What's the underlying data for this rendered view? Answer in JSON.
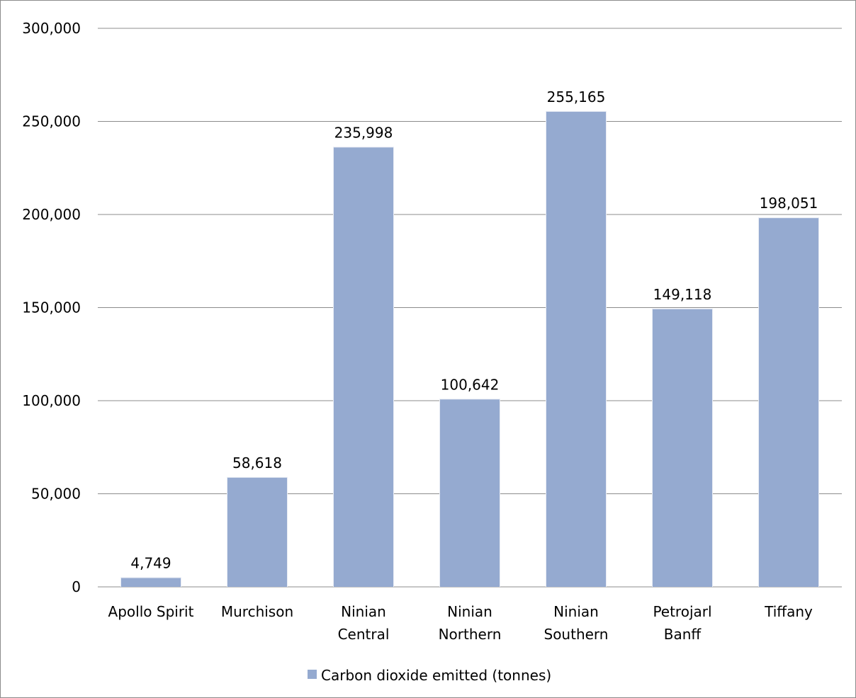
{
  "chart_data": {
    "type": "bar",
    "categories": [
      "Apollo Spirit",
      "Murchison",
      "Ninian Central",
      "Ninian Northern",
      "Ninian Southern",
      "Petrojarl Banff",
      "Tiffany"
    ],
    "category_lines": [
      [
        "Apollo Spirit"
      ],
      [
        "Murchison"
      ],
      [
        "Ninian",
        "Central"
      ],
      [
        "Ninian",
        "Northern"
      ],
      [
        "Ninian",
        "Southern"
      ],
      [
        "Petrojarl",
        "Banff"
      ],
      [
        "Tiffany"
      ]
    ],
    "series": [
      {
        "name": "Carbon dioxide emitted (tonnes)",
        "values": [
          4749,
          58618,
          235998,
          100642,
          255165,
          149118,
          198051
        ],
        "color": "#95aad0"
      }
    ],
    "data_labels": [
      "4,749",
      "58,618",
      "235,998",
      "100,642",
      "255,165",
      "149,118",
      "198,051"
    ],
    "title": "",
    "xlabel": "",
    "ylabel": "",
    "ylim": [
      0,
      300000
    ],
    "yticks": [
      0,
      50000,
      100000,
      150000,
      200000,
      250000,
      300000
    ],
    "ytick_labels": [
      "0",
      "50,000",
      "100,000",
      "150,000",
      "200,000",
      "250,000",
      "300,000"
    ],
    "grid": true,
    "legend_position": "bottom"
  }
}
